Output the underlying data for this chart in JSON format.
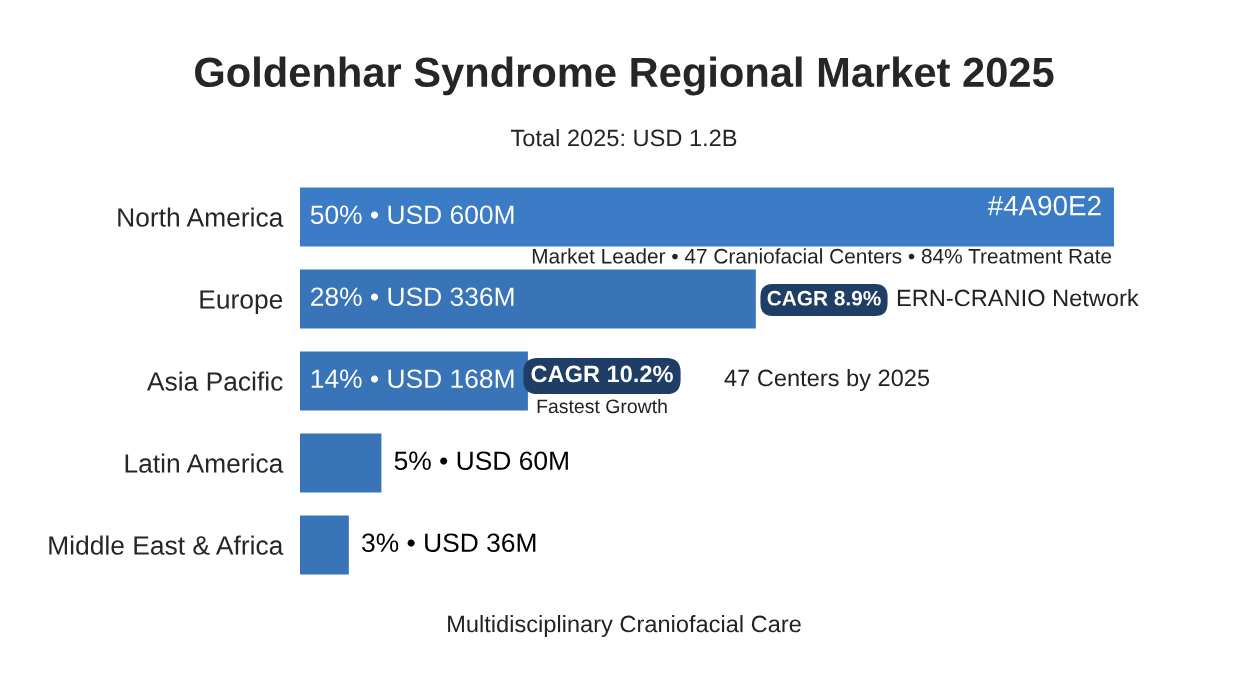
{
  "chart_data": {
    "type": "bar",
    "orientation": "horizontal",
    "title": "Goldenhar Syndrome Regional Market 2025",
    "subtitle": "Total 2025: USD 1.2B",
    "categories": [
      "North America",
      "Europe",
      "Asia Pacific",
      "Latin America",
      "Middle East & Africa"
    ],
    "values": [
      50,
      28,
      14,
      5,
      3
    ],
    "colors": [
      "#3c7cc6",
      "#3a74b8",
      "#3a74b8",
      "#3a74b8",
      "#3a74b8"
    ],
    "value_labels": [
      "50% • USD 600M",
      "28% • USD 336M",
      "14% • USD 168M",
      "5% • USD 60M",
      "3% • USD 36M"
    ],
    "annotations": [
      "#4A90E2",
      "Market Leader • 47 Craniofacial Centers • 84% Treatment Rate",
      "CAGR 8.9%",
      "ERN-CRANIO Network",
      "CAGR 10.2%",
      "Fastest Growth",
      "47 Centers by 2025",
      "Multidisciplinary Craniofacial Care"
    ]
  }
}
